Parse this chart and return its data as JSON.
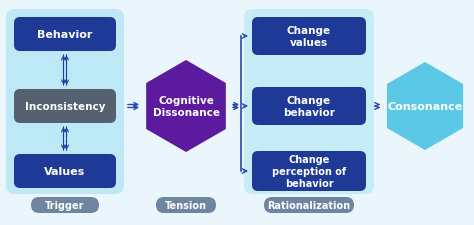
{
  "bg_color": "#eaf6fb",
  "box_dark_blue": "#1e3a96",
  "box_gray": "#556070",
  "box_light_blue_bg": "#bde8f5",
  "box_light_blue_bg2": "#c5ecf7",
  "box_purple": "#5c1a9e",
  "box_cyan": "#5bc8e8",
  "label_pill_color": "#6e85a0",
  "text_white": "#ffffff",
  "trigger_label": "Trigger",
  "tension_label": "Tension",
  "rationalization_label": "Rationalization",
  "behavior_text": "Behavior",
  "inconsistency_text": "Inconsistency",
  "values_text": "Values",
  "cognitive_dissonance_text": "Cognitive\nDissonance",
  "change_values_text": "Change\nvalues",
  "change_behavior_text": "Change\nbehavior",
  "change_perception_text": "Change\nperception of\nbehavior",
  "consonance_text": "Consonance",
  "arrow_color": "#2040a0",
  "conn_line_color": "#2a4ab0"
}
